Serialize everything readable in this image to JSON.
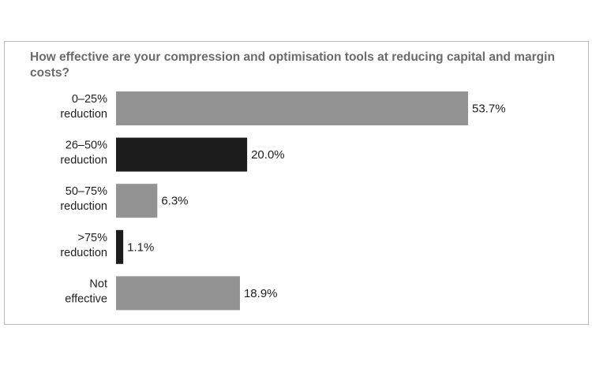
{
  "chart_data": {
    "type": "bar",
    "orientation": "horizontal",
    "title": "How effective are your compression and optimisation tools at reducing capital and margin costs?",
    "categories": [
      [
        "0–25%",
        "reduction"
      ],
      [
        "26–50%",
        "reduction"
      ],
      [
        "50–75%",
        "reduction"
      ],
      [
        ">75%",
        "reduction"
      ],
      [
        "Not",
        "effective"
      ]
    ],
    "values": [
      53.7,
      20.0,
      6.3,
      1.1,
      18.9
    ],
    "value_labels": [
      "53.7%",
      "20.0%",
      "6.3%",
      "1.1%",
      "18.9%"
    ],
    "bar_colors": [
      "#939393",
      "#1c1c1c",
      "#939393",
      "#1c1c1c",
      "#939393"
    ],
    "xlabel": "",
    "ylabel": "",
    "xlim": [
      0,
      53.7
    ],
    "grid": false,
    "legend": "none"
  }
}
